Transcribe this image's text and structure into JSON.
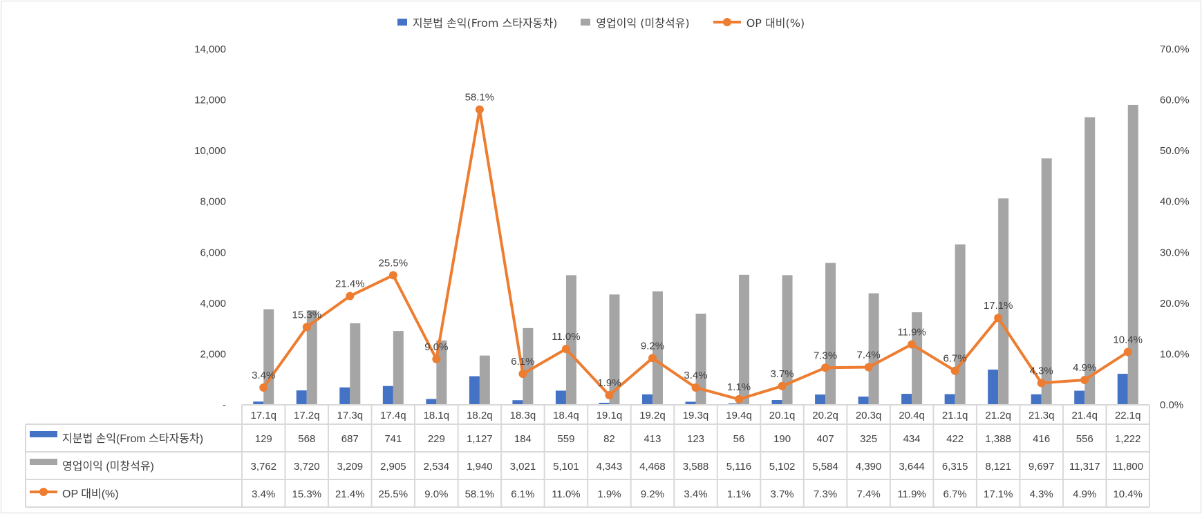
{
  "chart_data": {
    "type": "bar+line",
    "categories": [
      "17.1q",
      "17.2q",
      "17.3q",
      "17.4q",
      "18.1q",
      "18.2q",
      "18.3q",
      "18.4q",
      "19.1q",
      "19.2q",
      "19.3q",
      "19.4q",
      "20.1q",
      "20.2q",
      "20.3q",
      "20.4q",
      "21.1q",
      "21.2q",
      "21.3q",
      "21.4q",
      "22.1q"
    ],
    "series": [
      {
        "name": "지분법 손익(From 스타자동차)",
        "type": "bar",
        "axis": "left",
        "color": "#4472c4",
        "values": [
          129,
          568,
          687,
          741,
          229,
          1127,
          184,
          559,
          82,
          413,
          123,
          56,
          190,
          407,
          325,
          434,
          422,
          1388,
          416,
          556,
          1222
        ],
        "labels": [
          "129",
          "568",
          "687",
          "741",
          "229",
          "1,127",
          "184",
          "559",
          "82",
          "413",
          "123",
          "56",
          "190",
          "407",
          "325",
          "434",
          "422",
          "1,388",
          "416",
          "556",
          "1,222"
        ]
      },
      {
        "name": "영업이익 (미창석유)",
        "type": "bar",
        "axis": "left",
        "color": "#a5a5a5",
        "values": [
          3762,
          3720,
          3209,
          2905,
          2534,
          1940,
          3021,
          5101,
          4343,
          4468,
          3588,
          5116,
          5102,
          5584,
          4390,
          3644,
          6315,
          8121,
          9697,
          11317,
          11800
        ],
        "labels": [
          "3,762",
          "3,720",
          "3,209",
          "2,905",
          "2,534",
          "1,940",
          "3,021",
          "5,101",
          "4,343",
          "4,468",
          "3,588",
          "5,116",
          "5,102",
          "5,584",
          "4,390",
          "3,644",
          "6,315",
          "8,121",
          "9,697",
          "11,317",
          "11,800"
        ]
      },
      {
        "name": "OP 대비(%)",
        "type": "line",
        "axis": "right",
        "color": "#ed7d31",
        "values": [
          3.4,
          15.3,
          21.4,
          25.5,
          9.0,
          58.1,
          6.1,
          11.0,
          1.9,
          9.2,
          3.4,
          1.1,
          3.7,
          7.3,
          7.4,
          11.9,
          6.7,
          17.1,
          4.3,
          4.9,
          10.4
        ],
        "labels": [
          "3.4%",
          "15.3%",
          "21.4%",
          "25.5%",
          "9.0%",
          "58.1%",
          "6.1%",
          "11.0%",
          "1.9%",
          "9.2%",
          "3.4%",
          "1.1%",
          "3.7%",
          "7.3%",
          "7.4%",
          "11.9%",
          "6.7%",
          "17.1%",
          "4.3%",
          "4.9%",
          "10.4%"
        ]
      }
    ],
    "left_axis": {
      "ylim": [
        0,
        14000
      ],
      "ticks": [
        "-",
        "2,000",
        "4,000",
        "6,000",
        "8,000",
        "10,000",
        "12,000",
        "14,000"
      ]
    },
    "right_axis": {
      "ylim": [
        0,
        70
      ],
      "ticks": [
        "0.0%",
        "10.0%",
        "20.0%",
        "30.0%",
        "40.0%",
        "50.0%",
        "60.0%",
        "70.0%"
      ]
    },
    "legend": "top",
    "grid": false,
    "data_table": true
  }
}
